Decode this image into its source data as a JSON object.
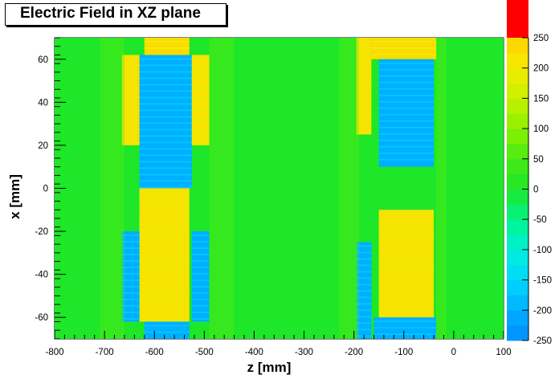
{
  "chart_data": {
    "type": "heatmap",
    "title": "Electric Field in XZ plane",
    "xlabel": "z [mm]",
    "ylabel": "x [mm]",
    "xlim": [
      -800,
      100
    ],
    "ylim": [
      -70,
      70
    ],
    "x_ticks": [
      -800,
      -700,
      -600,
      -500,
      -400,
      -300,
      -200,
      -100,
      0,
      100
    ],
    "y_ticks": [
      -60,
      -40,
      -20,
      0,
      20,
      40,
      60
    ],
    "colorbar": {
      "range": [
        -250,
        250
      ],
      "ticks": [
        250,
        200,
        150,
        100,
        50,
        0,
        -50,
        -100,
        -150,
        -200,
        -250
      ],
      "overflow_color": "#ff0000"
    },
    "background_value": 0,
    "regions": [
      {
        "z": [
          -630,
          -580
        ],
        "x": [
          0,
          62
        ],
        "value": -200
      },
      {
        "z": [
          -580,
          -525
        ],
        "x": [
          0,
          62
        ],
        "value": -200
      },
      {
        "z": [
          -620,
          -530
        ],
        "x": [
          62,
          70
        ],
        "value": 230
      },
      {
        "z": [
          -665,
          -630
        ],
        "x": [
          20,
          62
        ],
        "value": 220
      },
      {
        "z": [
          -525,
          -490
        ],
        "x": [
          20,
          62
        ],
        "value": 220
      },
      {
        "z": [
          -630,
          -530
        ],
        "x": [
          -62,
          0
        ],
        "value": 220
      },
      {
        "z": [
          -620,
          -530
        ],
        "x": [
          -70,
          -62
        ],
        "value": -200
      },
      {
        "z": [
          -665,
          -630
        ],
        "x": [
          -62,
          -20
        ],
        "value": -200
      },
      {
        "z": [
          -525,
          -490
        ],
        "x": [
          -62,
          -20
        ],
        "value": -200
      },
      {
        "z": [
          -195,
          -165
        ],
        "x": [
          25,
          70
        ],
        "value": 220
      },
      {
        "z": [
          -165,
          -35
        ],
        "x": [
          60,
          70
        ],
        "value": 230
      },
      {
        "z": [
          -150,
          -40
        ],
        "x": [
          10,
          60
        ],
        "value": -200
      },
      {
        "z": [
          -195,
          -165
        ],
        "x": [
          -70,
          -25
        ],
        "value": -200
      },
      {
        "z": [
          -160,
          -35
        ],
        "x": [
          -70,
          -60
        ],
        "value": -200
      },
      {
        "z": [
          -150,
          -40
        ],
        "x": [
          -60,
          -10
        ],
        "value": 220
      }
    ]
  }
}
